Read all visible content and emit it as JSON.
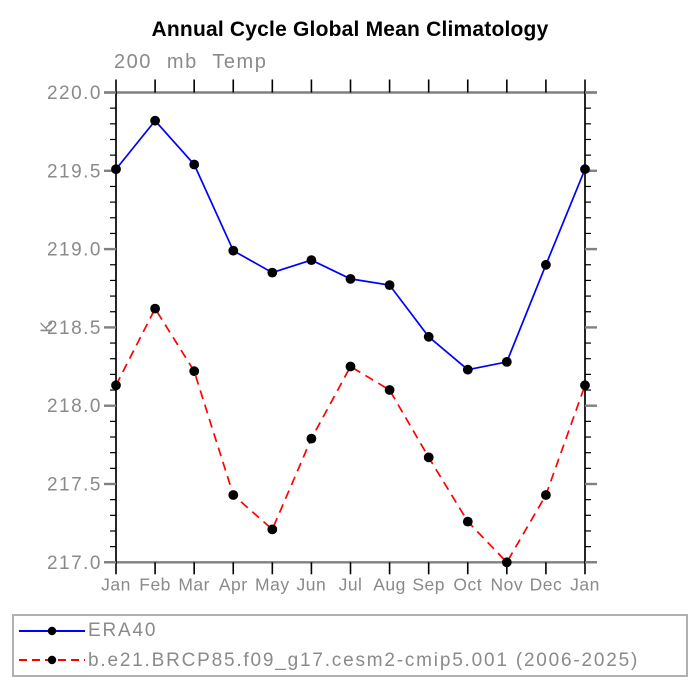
{
  "chart_data": {
    "type": "line",
    "title": "Annual Cycle Global Mean Climatology",
    "subtitle": "200 mb Temp",
    "ylabel": "K",
    "xlabel": "",
    "ylim": [
      217.0,
      220.0
    ],
    "ytick_labels": [
      "220.0",
      "219.5",
      "219.0",
      "218.5",
      "218.0",
      "217.5",
      "217.0"
    ],
    "minor_tick_interval": 0.1,
    "categories": [
      "Jan",
      "Feb",
      "Mar",
      "Apr",
      "May",
      "Jun",
      "Jul",
      "Aug",
      "Sep",
      "Oct",
      "Nov",
      "Dec",
      "Jan"
    ],
    "grid": false,
    "legend_position": "bottom-left-box",
    "series": [
      {
        "name": "ERA40",
        "line_color": "#0000ff",
        "line_style": "solid",
        "marker": "filled-circle",
        "marker_color": "#000000",
        "values": [
          219.51,
          219.82,
          219.54,
          218.99,
          218.85,
          218.93,
          218.81,
          218.77,
          218.44,
          218.23,
          218.28,
          218.9,
          219.51
        ]
      },
      {
        "name": "b.e21.BRCP85.f09_g17.cesm2-cmip5.001 (2006-2025)",
        "line_color": "#ff0000",
        "line_style": "dashed",
        "marker": "filled-circle",
        "marker_color": "#000000",
        "values": [
          218.13,
          218.62,
          218.22,
          217.43,
          217.21,
          217.79,
          218.25,
          218.1,
          217.67,
          217.26,
          217.0,
          217.43,
          218.13
        ]
      }
    ],
    "colors": {
      "background": "#ffffff",
      "axis_line": "#000000",
      "box_edge": "#808080",
      "major_tick": "#808080",
      "minor_tick": "#000000",
      "tick_label": "#8a8a8a",
      "title": "#000000",
      "legend_border": "#b0b0b0",
      "legend_text": "#8a8a8a"
    }
  }
}
